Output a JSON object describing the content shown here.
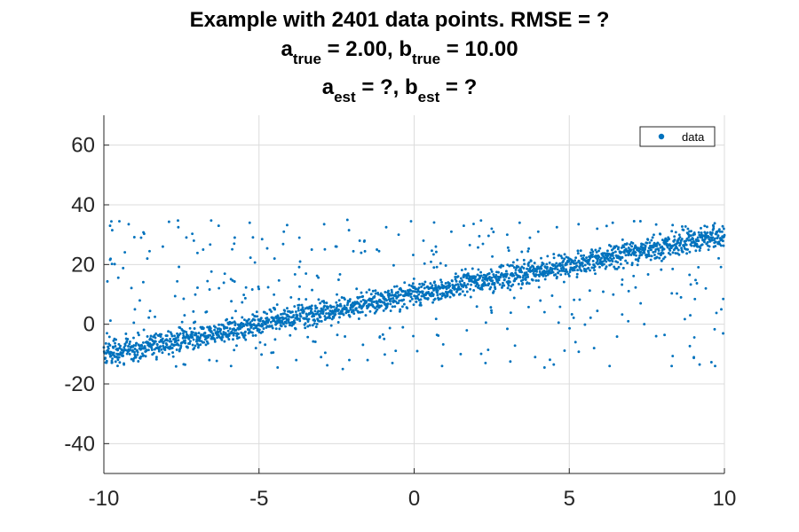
{
  "chart_data": {
    "type": "scatter",
    "title_lines": [
      [
        {
          "text": "Example with 2401 data points. RMSE = ?"
        }
      ],
      [
        {
          "text": "a"
        },
        {
          "text": "true",
          "sub": true
        },
        {
          "text": " = 2.00, b"
        },
        {
          "text": "true",
          "sub": true
        },
        {
          "text": " = 10.00"
        }
      ],
      [
        {
          "text": "a"
        },
        {
          "text": "est",
          "sub": true
        },
        {
          "text": " = ?, b"
        },
        {
          "text": "est",
          "sub": true
        },
        {
          "text": " = ?"
        }
      ]
    ],
    "xlabel": "",
    "ylabel": "",
    "xlim": [
      -10,
      10
    ],
    "ylim": [
      -50,
      70
    ],
    "xticks": [
      -10,
      -5,
      0,
      5,
      10
    ],
    "yticks": [
      -40,
      -20,
      0,
      20,
      40,
      60
    ],
    "x_tick_labels": [
      "-10",
      "-5",
      "0",
      "5",
      "10"
    ],
    "y_tick_labels": [
      "-40",
      "-20",
      "0",
      "20",
      "40",
      "60"
    ],
    "grid": true,
    "legend": {
      "position": "top-right",
      "entries": [
        "data"
      ]
    },
    "point_color": "#0072BD",
    "series": [
      {
        "name": "data",
        "n_points": 2401,
        "trend": {
          "a": 2.0,
          "b": 10.0
        },
        "inlier_spread_y": 2.0,
        "outlier_range_y": [
          -15,
          35
        ],
        "outliers_above_sample": [
          [
            -9.8,
            33.0
          ],
          [
            -9.5,
            34.5
          ],
          [
            -9.2,
            33.5
          ],
          [
            -8.8,
            29.0
          ],
          [
            -8.6,
            22.0
          ],
          [
            -8.1,
            26.0
          ],
          [
            -7.6,
            32.5
          ],
          [
            -7.1,
            28.0
          ],
          [
            -6.8,
            25.0
          ],
          [
            -6.3,
            33.0
          ],
          [
            -5.8,
            27.0
          ],
          [
            -5.3,
            34.0
          ],
          [
            -4.9,
            28.5
          ],
          [
            -4.5,
            22.0
          ],
          [
            -4.2,
            31.0
          ],
          [
            -3.7,
            29.0
          ],
          [
            -3.3,
            25.0
          ],
          [
            -2.9,
            33.5
          ],
          [
            -2.5,
            26.0
          ],
          [
            -2.1,
            31.5
          ],
          [
            -1.6,
            28.0
          ],
          [
            -1.2,
            25.0
          ],
          [
            -0.9,
            32.5
          ],
          [
            -0.5,
            30.0
          ],
          [
            -0.1,
            34.5
          ],
          [
            0.3,
            28.0
          ],
          [
            0.7,
            26.0
          ],
          [
            1.2,
            31.0
          ],
          [
            1.6,
            33.0
          ],
          [
            2.1,
            29.5
          ],
          [
            2.5,
            32.0
          ],
          [
            3.0,
            30.0
          ],
          [
            3.4,
            34.0
          ],
          [
            4.0,
            31.0
          ],
          [
            4.6,
            32.5
          ],
          [
            5.3,
            33.5
          ],
          [
            5.9,
            32.0
          ],
          [
            6.4,
            34.0
          ]
        ],
        "outliers_below_sample": [
          [
            -9.9,
            -3.0
          ],
          [
            -9.0,
            5.0
          ],
          [
            -8.3,
            -11.0
          ],
          [
            -7.4,
            3.0
          ],
          [
            -6.6,
            -12.0
          ],
          [
            -5.9,
            -14.0
          ],
          [
            -5.1,
            -8.0
          ],
          [
            -4.4,
            -14.5
          ],
          [
            -3.8,
            -12.0
          ],
          [
            -3.0,
            -11.0
          ],
          [
            -2.3,
            -15.0
          ],
          [
            -1.5,
            -12.0
          ],
          [
            -0.7,
            -13.0
          ],
          [
            0.1,
            -9.0
          ],
          [
            0.9,
            -14.0
          ],
          [
            1.5,
            -10.0
          ],
          [
            2.3,
            -13.0
          ],
          [
            3.1,
            -12.5
          ],
          [
            3.9,
            -11.0
          ],
          [
            4.5,
            -13.5
          ],
          [
            5.2,
            -6.0
          ],
          [
            5.8,
            -8.0
          ],
          [
            6.3,
            -14.0
          ],
          [
            6.9,
            1.0
          ],
          [
            7.3,
            7.0
          ],
          [
            7.8,
            -4.0
          ],
          [
            8.3,
            -14.0
          ],
          [
            8.6,
            9.0
          ],
          [
            8.9,
            3.0
          ],
          [
            9.2,
            -13.5
          ],
          [
            9.4,
            12.0
          ],
          [
            9.7,
            -14.0
          ],
          [
            9.9,
            5.0
          ]
        ]
      }
    ]
  }
}
